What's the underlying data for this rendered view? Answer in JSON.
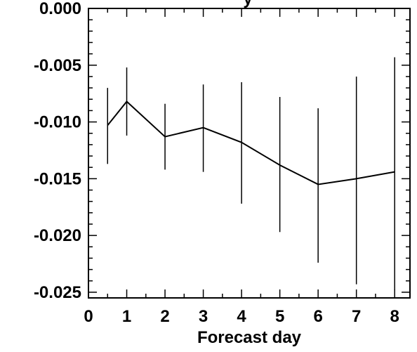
{
  "chart_data": {
    "type": "line",
    "title_fragment": "y",
    "xlabel": "Forecast day",
    "ylabel": "",
    "xlim": [
      0,
      8.4
    ],
    "ylim": [
      -0.0255,
      0.0
    ],
    "x_ticks": [
      0,
      1,
      2,
      3,
      4,
      5,
      6,
      7,
      8
    ],
    "x_tick_labels": [
      "0",
      "1",
      "2",
      "3",
      "4",
      "5",
      "6",
      "7",
      "8"
    ],
    "y_ticks": [
      0.0,
      -0.005,
      -0.01,
      -0.015,
      -0.02,
      -0.025
    ],
    "y_tick_labels": [
      "0.000",
      "-0.005",
      "-0.010",
      "-0.015",
      "-0.020",
      "-0.025"
    ],
    "grid": false,
    "series": [
      {
        "x": [
          0.5,
          1,
          2,
          3,
          4,
          5,
          6,
          7,
          8
        ],
        "y": [
          -0.0103,
          -0.0082,
          -0.0113,
          -0.0105,
          -0.0118,
          -0.0138,
          -0.0155,
          -0.015,
          -0.0144
        ],
        "error_low": [
          -0.0137,
          -0.0112,
          -0.0142,
          -0.0144,
          -0.0172,
          -0.0197,
          -0.0224,
          -0.0243,
          -0.0248
        ],
        "error_high": [
          -0.007,
          -0.0052,
          -0.0084,
          -0.0067,
          -0.0065,
          -0.0078,
          -0.0088,
          -0.006,
          -0.0043
        ]
      }
    ],
    "line_color": "#000000"
  }
}
